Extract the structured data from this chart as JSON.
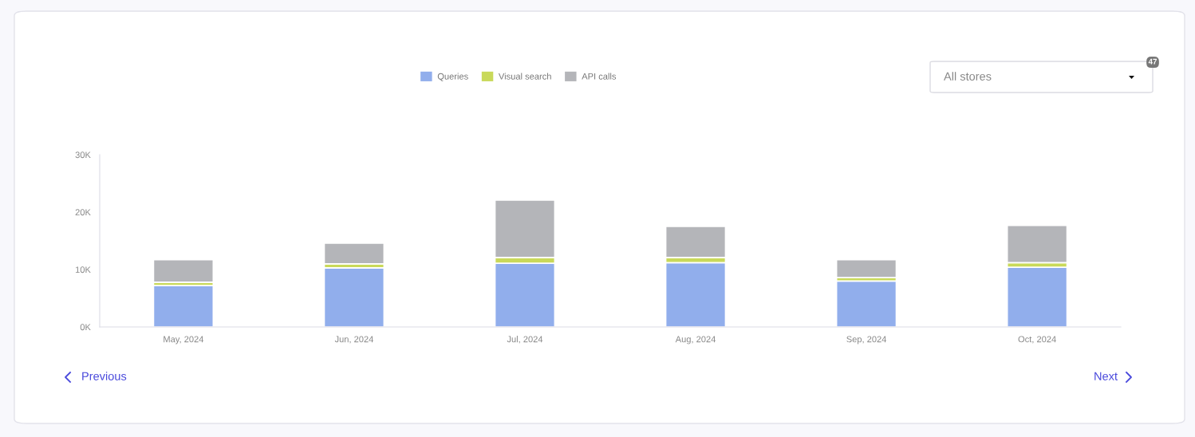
{
  "chart_data": {
    "type": "bar",
    "stacked": true,
    "categories": [
      "May, 2024",
      "Jun, 2024",
      "Jul, 2024",
      "Aug, 2024",
      "Sep, 2024",
      "Oct, 2024"
    ],
    "series": [
      {
        "name": "Queries",
        "color": "#91aeec",
        "values": [
          7200,
          10300,
          11100,
          11200,
          8000,
          10400
        ]
      },
      {
        "name": "Visual search",
        "color": "#c9d95a",
        "values": [
          600,
          700,
          1000,
          900,
          600,
          800
        ]
      },
      {
        "name": "API calls",
        "color": "#b4b5b9",
        "values": [
          3900,
          3600,
          10000,
          5400,
          3100,
          6500
        ]
      }
    ],
    "ylim": [
      0,
      30000
    ],
    "yticks": [
      {
        "value": 0,
        "label": "0K"
      },
      {
        "value": 10000,
        "label": "10K"
      },
      {
        "value": 20000,
        "label": "20K"
      },
      {
        "value": 30000,
        "label": "30K"
      }
    ],
    "grid": false,
    "legend": "top",
    "annotations": [
      "All stores",
      "47",
      "Previous",
      "Next"
    ]
  }
}
